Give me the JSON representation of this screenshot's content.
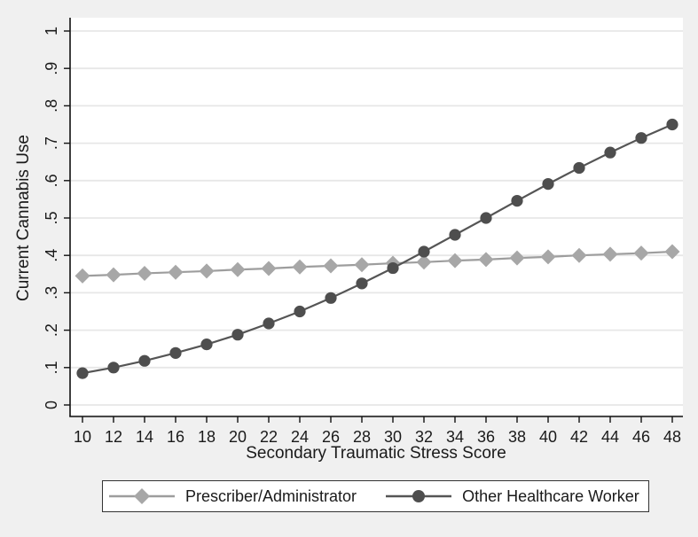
{
  "figure": {
    "background": "#f0f0f0",
    "plot_background": "#ffffff",
    "grid_color": "#e7e7e7",
    "axis_color": "#111111",
    "text_color": "#1a1a1a",
    "legend_border_color": "#333333"
  },
  "chart_data": {
    "type": "line",
    "title": "",
    "xlabel": "Secondary Traumatic Stress Score",
    "ylabel": "Current Cannabis Use",
    "xlim": [
      10,
      48
    ],
    "ylim": [
      0,
      1
    ],
    "grid": "horizontal",
    "legend_position": "bottom",
    "x": [
      10,
      12,
      14,
      16,
      18,
      20,
      22,
      24,
      26,
      28,
      30,
      32,
      34,
      36,
      38,
      40,
      42,
      44,
      46,
      48
    ],
    "xtick_labels": [
      "10",
      "12",
      "14",
      "16",
      "18",
      "20",
      "22",
      "24",
      "26",
      "28",
      "30",
      "32",
      "34",
      "36",
      "38",
      "40",
      "42",
      "44",
      "46",
      "48"
    ],
    "ytick_values": [
      0,
      0.1,
      0.2,
      0.3,
      0.4,
      0.5,
      0.6,
      0.7,
      0.8,
      0.9,
      1
    ],
    "ytick_labels": [
      "0",
      ".1",
      ".2",
      ".3",
      ".4",
      ".5",
      ".6",
      ".7",
      ".8",
      ".9",
      "1"
    ],
    "series": [
      {
        "name": "Prescriber/Administrator",
        "marker": "diamond",
        "color": "#a7a7a7",
        "line_color": "#9d9d9d",
        "values": [
          0.345,
          0.348,
          0.352,
          0.355,
          0.358,
          0.362,
          0.365,
          0.369,
          0.372,
          0.375,
          0.379,
          0.382,
          0.386,
          0.389,
          0.393,
          0.396,
          0.4,
          0.403,
          0.406,
          0.41
        ]
      },
      {
        "name": "Other Healthcare Worker",
        "marker": "circle",
        "color": "#4e4e4e",
        "line_color": "#555555",
        "values": [
          0.085,
          0.1,
          0.118,
          0.139,
          0.162,
          0.188,
          0.218,
          0.25,
          0.286,
          0.325,
          0.366,
          0.41,
          0.455,
          0.5,
          0.546,
          0.591,
          0.634,
          0.675,
          0.714,
          0.75
        ]
      }
    ]
  }
}
